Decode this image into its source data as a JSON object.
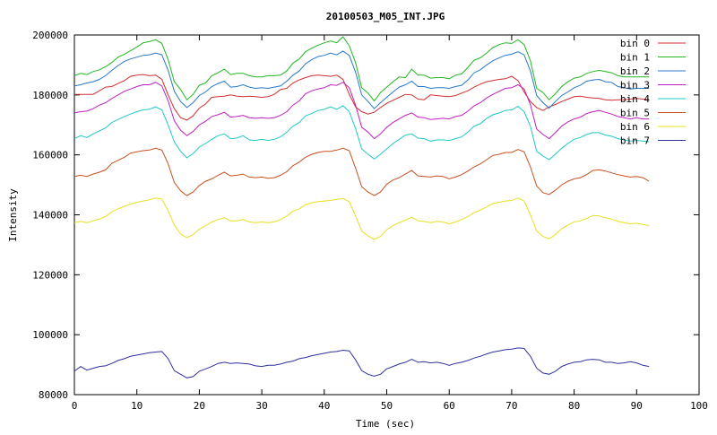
{
  "chart_data": {
    "type": "line",
    "title": "20100503_M05_INT.JPG",
    "xlabel": "Time (sec)",
    "ylabel": "Intensity",
    "xlim": [
      0,
      100
    ],
    "ylim": [
      80000,
      200000
    ],
    "xticks": [
      0,
      10,
      20,
      30,
      40,
      50,
      60,
      70,
      80,
      90,
      100
    ],
    "yticks": [
      80000,
      100000,
      120000,
      140000,
      160000,
      180000,
      200000
    ],
    "grid": false,
    "legend_position": "top-right",
    "x": [
      0,
      1,
      2,
      3,
      4,
      5,
      6,
      7,
      8,
      9,
      10,
      11,
      12,
      13,
      14,
      15,
      16,
      17,
      18,
      19,
      20,
      21,
      22,
      23,
      24,
      25,
      26,
      27,
      28,
      29,
      30,
      31,
      32,
      33,
      34,
      35,
      36,
      37,
      38,
      39,
      40,
      41,
      42,
      43,
      44,
      45,
      46,
      47,
      48,
      49,
      50,
      51,
      52,
      53,
      54,
      55,
      56,
      57,
      58,
      59,
      60,
      61,
      62,
      63,
      64,
      65,
      66,
      67,
      68,
      69,
      70,
      71,
      72,
      73,
      74,
      75,
      76,
      77,
      78,
      79,
      80,
      81,
      82,
      83,
      84,
      85,
      86,
      87,
      88,
      89,
      90,
      91,
      92
    ],
    "series": [
      {
        "name": "bin 0",
        "color": "#d03030",
        "values": [
          180200,
          180200,
          180200,
          180200,
          181400,
          182600,
          182800,
          183800,
          184800,
          186200,
          186600,
          186800,
          186400,
          186600,
          185200,
          180000,
          175400,
          172400,
          171600,
          173000,
          175600,
          177000,
          179200,
          179400,
          179600,
          180000,
          179600,
          179400,
          179600,
          179400,
          179200,
          179400,
          180200,
          181800,
          182200,
          184000,
          185000,
          185800,
          186400,
          186600,
          186400,
          186200,
          186600,
          185200,
          180200,
          176000,
          174400,
          173600,
          174200,
          175800,
          177200,
          178200,
          179200,
          180200,
          180000,
          178600,
          178400,
          180000,
          179800,
          179600,
          179400,
          179800,
          180600,
          181400,
          182600,
          183600,
          184400,
          184800,
          185200,
          185400,
          186200,
          184800,
          181000,
          177800,
          175800,
          174800,
          176000,
          176800,
          177800,
          178600,
          179400,
          179600,
          179200,
          179000,
          178800,
          178400,
          178200,
          178400,
          178400,
          178600,
          178800,
          178600,
          178400
        ]
      },
      {
        "name": "bin 1",
        "color": "#20b820",
        "values": [
          186400,
          187200,
          186800,
          187800,
          188400,
          189400,
          190800,
          192600,
          193600,
          194800,
          196000,
          197400,
          197800,
          198400,
          197200,
          191800,
          184400,
          181800,
          178400,
          180200,
          183200,
          184000,
          186400,
          187400,
          188600,
          186800,
          187200,
          187200,
          186400,
          186000,
          186000,
          186400,
          186400,
          186600,
          188000,
          190600,
          192000,
          194400,
          195600,
          196600,
          197400,
          198000,
          197400,
          199400,
          196400,
          190800,
          182400,
          180600,
          178000,
          180800,
          182600,
          184400,
          186000,
          185800,
          188600,
          186600,
          186600,
          185600,
          185800,
          185800,
          185400,
          186600,
          187000,
          189200,
          191600,
          192400,
          194000,
          195800,
          196800,
          197400,
          197200,
          198400,
          196800,
          191400,
          182200,
          180800,
          178400,
          180400,
          182800,
          184400,
          185600,
          186000,
          187200,
          187800,
          188200,
          187800,
          187400,
          186400,
          186000,
          186000,
          186000,
          186000,
          186000
        ]
      },
      {
        "name": "bin 2",
        "color": "#2878c8",
        "values": [
          183000,
          183400,
          184000,
          184400,
          185200,
          186400,
          188200,
          189800,
          191200,
          192000,
          192600,
          193200,
          193400,
          194000,
          193400,
          188200,
          181200,
          177800,
          175800,
          177400,
          179800,
          181000,
          182800,
          183800,
          184600,
          182600,
          182800,
          183400,
          182600,
          182200,
          182400,
          182200,
          182600,
          183000,
          184600,
          186600,
          188000,
          190400,
          191800,
          192800,
          193200,
          194000,
          193400,
          194600,
          193200,
          187600,
          180000,
          177800,
          175400,
          177400,
          179200,
          181000,
          182600,
          183400,
          184600,
          182800,
          182800,
          182200,
          182400,
          182400,
          182200,
          182800,
          183200,
          185000,
          187400,
          188400,
          190000,
          191400,
          192400,
          193200,
          193600,
          194400,
          193400,
          188000,
          179800,
          177400,
          175600,
          177800,
          179800,
          181000,
          182400,
          183200,
          184600,
          185000,
          185200,
          184400,
          184200,
          182800,
          182400,
          182000,
          182200,
          182200,
          182200
        ]
      },
      {
        "name": "bin 3",
        "color": "#c020c0",
        "values": [
          174000,
          174400,
          174600,
          175400,
          176600,
          177400,
          178800,
          180000,
          181200,
          182000,
          182800,
          183400,
          183400,
          184200,
          183000,
          178000,
          171400,
          168200,
          166400,
          167800,
          170000,
          171200,
          172800,
          173400,
          174200,
          172600,
          172800,
          173200,
          172400,
          172200,
          172400,
          172200,
          172400,
          173200,
          174400,
          176600,
          178000,
          180400,
          181400,
          182000,
          182400,
          183400,
          183200,
          184200,
          182400,
          176600,
          169200,
          167600,
          165400,
          167000,
          169200,
          170800,
          172000,
          173200,
          174000,
          172600,
          172400,
          171800,
          172000,
          172200,
          172000,
          172800,
          173200,
          174600,
          176400,
          177400,
          179000,
          180200,
          181200,
          182200,
          182400,
          183400,
          182000,
          176800,
          168600,
          166800,
          165400,
          167400,
          169600,
          171000,
          172000,
          172600,
          173800,
          174400,
          174800,
          174200,
          173600,
          172800,
          172400,
          172000,
          172400,
          172000,
          172000
        ]
      },
      {
        "name": "bin 4",
        "color": "#20c8c8",
        "values": [
          165400,
          166400,
          165800,
          167000,
          168000,
          169000,
          170800,
          171800,
          172800,
          173600,
          174400,
          175000,
          175200,
          176000,
          175000,
          170000,
          164400,
          161200,
          159000,
          160400,
          162600,
          163800,
          165200,
          166400,
          167000,
          165400,
          165600,
          166400,
          165000,
          164800,
          165200,
          164800,
          165200,
          166000,
          167600,
          169600,
          170800,
          173000,
          173800,
          174800,
          175200,
          176000,
          175200,
          176400,
          174400,
          168800,
          162000,
          160200,
          158600,
          160200,
          162000,
          163800,
          165200,
          166600,
          167000,
          165600,
          165400,
          164600,
          165000,
          165000,
          164800,
          165400,
          166000,
          167600,
          169600,
          170400,
          172200,
          173400,
          174000,
          174800,
          175000,
          176200,
          174400,
          169600,
          161200,
          159600,
          158400,
          160200,
          162200,
          163800,
          165200,
          165800,
          166800,
          167400,
          167400,
          166600,
          166200,
          165400,
          165000,
          164600,
          164800,
          164600,
          164400
        ]
      },
      {
        "name": "bin 5",
        "color": "#c85020",
        "values": [
          152800,
          153200,
          152800,
          153600,
          154200,
          155000,
          157200,
          158200,
          159200,
          160600,
          161000,
          161400,
          161600,
          162200,
          161600,
          157000,
          150800,
          148000,
          146400,
          147600,
          149800,
          151200,
          152000,
          153200,
          154200,
          153000,
          153200,
          153600,
          152600,
          152400,
          152600,
          152200,
          152400,
          153200,
          154400,
          156400,
          157600,
          159200,
          160200,
          160800,
          161200,
          161200,
          161600,
          162200,
          161400,
          155600,
          149400,
          147600,
          146400,
          147600,
          150200,
          151600,
          152400,
          153600,
          154800,
          153000,
          152800,
          152600,
          153000,
          152800,
          152000,
          152600,
          153400,
          154600,
          156000,
          157000,
          158400,
          159800,
          160200,
          160800,
          160800,
          161800,
          161000,
          156000,
          149600,
          147400,
          146800,
          148200,
          150000,
          151200,
          152000,
          152400,
          153400,
          154800,
          155000,
          154600,
          154000,
          153400,
          153000,
          152600,
          152800,
          152400,
          151200
        ]
      },
      {
        "name": "bin 6",
        "color": "#e8e020",
        "values": [
          137400,
          137800,
          137400,
          138000,
          138600,
          139400,
          141000,
          142000,
          142800,
          143600,
          144200,
          144600,
          145000,
          145600,
          145200,
          141400,
          136600,
          133600,
          132400,
          133400,
          135200,
          136400,
          137600,
          138400,
          139000,
          138000,
          138000,
          138400,
          137600,
          137400,
          137600,
          137400,
          137600,
          138400,
          139600,
          141200,
          142000,
          143400,
          144000,
          144400,
          144600,
          144800,
          145200,
          145400,
          144400,
          139600,
          134600,
          133000,
          131800,
          132800,
          135000,
          136400,
          137400,
          138200,
          139200,
          138000,
          137800,
          137400,
          137800,
          137600,
          137000,
          137600,
          138400,
          139400,
          140800,
          141600,
          142600,
          143800,
          144200,
          144600,
          144800,
          145600,
          144600,
          140000,
          134600,
          132800,
          132000,
          133400,
          135400,
          136600,
          137600,
          138000,
          138800,
          139800,
          139600,
          139000,
          138600,
          137800,
          137400,
          137000,
          137200,
          136800,
          136400
        ]
      },
      {
        "name": "bin 7",
        "color": "#3030a0",
        "values": [
          87800,
          89400,
          88200,
          88800,
          89400,
          89600,
          90400,
          91400,
          92000,
          92800,
          93200,
          93600,
          94000,
          94200,
          94400,
          92000,
          88000,
          86800,
          85600,
          86000,
          87800,
          88600,
          89400,
          90400,
          90800,
          90400,
          90600,
          90400,
          90200,
          89600,
          89400,
          89800,
          89800,
          90200,
          90800,
          91200,
          92000,
          92400,
          93000,
          93400,
          93800,
          94200,
          94400,
          94800,
          94600,
          91600,
          88000,
          86800,
          86200,
          86800,
          88600,
          89400,
          90200,
          90800,
          91800,
          90800,
          91000,
          90600,
          90800,
          90400,
          89800,
          90400,
          90800,
          91400,
          92200,
          92800,
          93600,
          94200,
          94600,
          95000,
          95200,
          95600,
          95400,
          92800,
          88800,
          87200,
          86800,
          87800,
          89400,
          90200,
          90800,
          91000,
          91600,
          91800,
          91600,
          90800,
          90800,
          90400,
          90600,
          91000,
          90600,
          89800,
          89400
        ]
      }
    ]
  }
}
